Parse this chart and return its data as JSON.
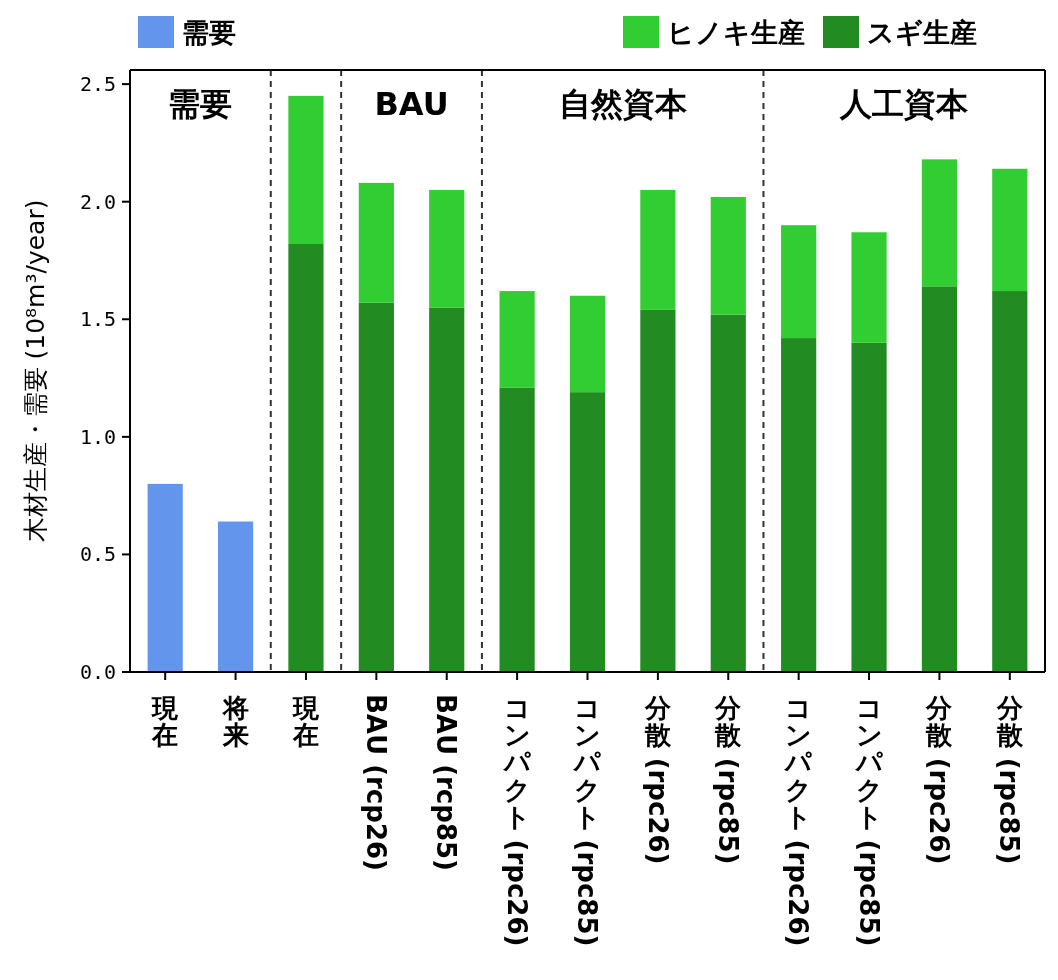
{
  "chart_data": {
    "type": "bar",
    "stacked": true,
    "ylabel": "木材生産・需要 (10⁸m³/year)",
    "categories": [
      "現在",
      "将来",
      "現在",
      "BAU (rcp26)",
      "BAU (rcp85)",
      "コンパクト (rpc26)",
      "コンパクト (rpc85)",
      "分散 (rpc26)",
      "分散 (rpc85)",
      "コンパクト (rpc26)",
      "コンパクト (rpc85)",
      "分散 (rpc26)",
      "分散 (rpc85)"
    ],
    "series": [
      {
        "name": "需要",
        "color": "#6495ed",
        "values": [
          0.8,
          0.64,
          null,
          null,
          null,
          null,
          null,
          null,
          null,
          null,
          null,
          null,
          null
        ]
      },
      {
        "name": "スギ生産",
        "color": "#228b22",
        "values": [
          null,
          null,
          1.82,
          1.57,
          1.55,
          1.21,
          1.19,
          1.54,
          1.52,
          1.42,
          1.4,
          1.64,
          1.62
        ]
      },
      {
        "name": "ヒノキ生産",
        "color": "#32cd32",
        "values": [
          null,
          null,
          0.63,
          0.51,
          0.5,
          0.41,
          0.41,
          0.51,
          0.5,
          0.48,
          0.47,
          0.54,
          0.52
        ]
      }
    ],
    "ylim": [
      0,
      2.56
    ],
    "yticks": [
      {
        "value": 0,
        "label": "0.0"
      },
      {
        "value": 0.5,
        "label": "0.5"
      },
      {
        "value": 1,
        "label": "1.0"
      },
      {
        "value": 1.5,
        "label": "1.5"
      },
      {
        "value": 2,
        "label": "2.0"
      },
      {
        "value": 2.5,
        "label": "2.5"
      }
    ],
    "annotations": [
      "需要",
      "BAU",
      "自然資本",
      "人工資本"
    ],
    "legend": "top",
    "grid": false
  }
}
